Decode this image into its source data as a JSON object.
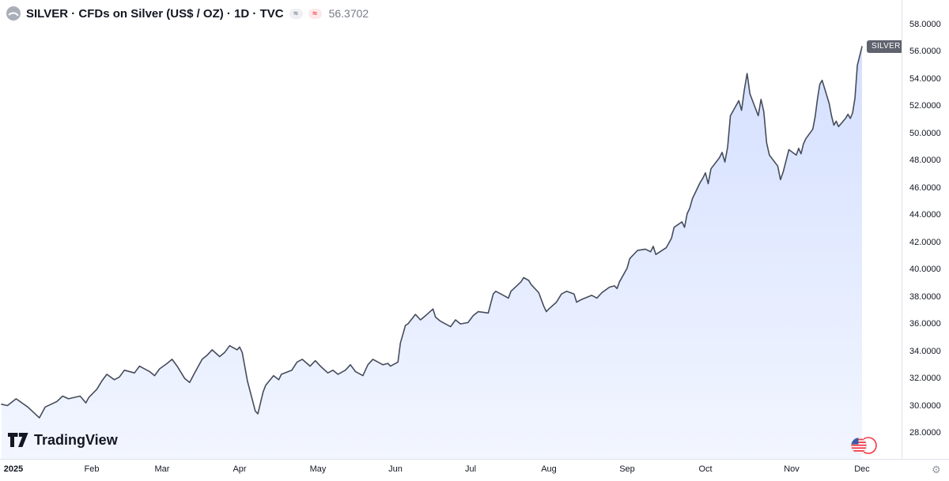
{
  "header": {
    "symbol_title": "SILVER · CFDs on Silver (US$ / OZ) · 1D · TVC",
    "price_value": "56.3702",
    "badges": [
      "≈",
      "≈"
    ]
  },
  "series_label": "SILVER",
  "footer": {
    "logo_text": "TradingView"
  },
  "icons": {
    "settings": "⚙",
    "symbol_logo": "silver-coin",
    "flag": "us-flag-circle"
  },
  "colors": {
    "line": "#454c5b",
    "area_top": "rgba(41,98,255,0.20)",
    "area_bottom": "rgba(41,98,255,0.06)",
    "axis_text": "#131722",
    "muted_text": "#787b86",
    "separator": "#e0e3eb",
    "badge_bg": "#5f636e",
    "alert_red": "#f23645"
  },
  "price_axis": {
    "ticks": [
      "58.0000",
      "56.0000",
      "54.0000",
      "52.0000",
      "50.0000",
      "48.0000",
      "46.0000",
      "44.0000",
      "42.0000",
      "40.0000",
      "38.0000",
      "36.0000",
      "34.0000",
      "32.0000",
      "30.0000",
      "28.0000"
    ]
  },
  "time_axis": {
    "labels": [
      "2025",
      "Feb",
      "Mar",
      "Apr",
      "May",
      "Jun",
      "Jul",
      "Aug",
      "Sep",
      "Oct",
      "Nov",
      "Dec"
    ]
  },
  "chart_data": {
    "type": "area",
    "title": "SILVER · CFDs on Silver (US$ / OZ) · 1D · TVC",
    "symbol": "SILVER",
    "interval": "1D",
    "exchange": "TVC",
    "last_price": 56.3702,
    "xlabel": "",
    "ylabel": "US$ / OZ",
    "ylim": [
      28,
      58
    ],
    "x_range": [
      "2025-01-01",
      "2025-12-01"
    ],
    "grid": false,
    "legend_position": "none",
    "points": [
      [
        "2025-01-01",
        30.1
      ],
      [
        "2025-01-03",
        30.0
      ],
      [
        "2025-01-06",
        30.5
      ],
      [
        "2025-01-08",
        30.2
      ],
      [
        "2025-01-10",
        29.9
      ],
      [
        "2025-01-13",
        29.3
      ],
      [
        "2025-01-14",
        29.1
      ],
      [
        "2025-01-16",
        29.9
      ],
      [
        "2025-01-20",
        30.3
      ],
      [
        "2025-01-22",
        30.7
      ],
      [
        "2025-01-24",
        30.5
      ],
      [
        "2025-01-28",
        30.7
      ],
      [
        "2025-01-30",
        30.2
      ],
      [
        "2025-01-31",
        30.6
      ],
      [
        "2025-02-03",
        31.2
      ],
      [
        "2025-02-05",
        31.8
      ],
      [
        "2025-02-07",
        32.3
      ],
      [
        "2025-02-10",
        31.9
      ],
      [
        "2025-02-12",
        32.1
      ],
      [
        "2025-02-14",
        32.6
      ],
      [
        "2025-02-18",
        32.4
      ],
      [
        "2025-02-20",
        32.9
      ],
      [
        "2025-02-24",
        32.5
      ],
      [
        "2025-02-26",
        32.2
      ],
      [
        "2025-02-28",
        32.7
      ],
      [
        "2025-03-03",
        33.1
      ],
      [
        "2025-03-05",
        33.4
      ],
      [
        "2025-03-07",
        32.9
      ],
      [
        "2025-03-10",
        32.0
      ],
      [
        "2025-03-12",
        31.7
      ],
      [
        "2025-03-14",
        32.4
      ],
      [
        "2025-03-17",
        33.4
      ],
      [
        "2025-03-19",
        33.7
      ],
      [
        "2025-03-21",
        34.1
      ],
      [
        "2025-03-24",
        33.6
      ],
      [
        "2025-03-26",
        33.9
      ],
      [
        "2025-03-28",
        34.4
      ],
      [
        "2025-03-31",
        34.1
      ],
      [
        "2025-04-01",
        34.3
      ],
      [
        "2025-04-02",
        33.9
      ],
      [
        "2025-04-04",
        31.8
      ],
      [
        "2025-04-07",
        29.6
      ],
      [
        "2025-04-08",
        29.4
      ],
      [
        "2025-04-10",
        31.0
      ],
      [
        "2025-04-11",
        31.5
      ],
      [
        "2025-04-14",
        32.2
      ],
      [
        "2025-04-16",
        31.9
      ],
      [
        "2025-04-17",
        32.3
      ],
      [
        "2025-04-21",
        32.6
      ],
      [
        "2025-04-23",
        33.2
      ],
      [
        "2025-04-25",
        33.4
      ],
      [
        "2025-04-28",
        32.9
      ],
      [
        "2025-04-30",
        33.3
      ],
      [
        "2025-05-02",
        32.9
      ],
      [
        "2025-05-05",
        32.4
      ],
      [
        "2025-05-07",
        32.6
      ],
      [
        "2025-05-09",
        32.3
      ],
      [
        "2025-05-12",
        32.6
      ],
      [
        "2025-05-14",
        33.0
      ],
      [
        "2025-05-16",
        32.5
      ],
      [
        "2025-05-19",
        32.2
      ],
      [
        "2025-05-21",
        33.0
      ],
      [
        "2025-05-23",
        33.4
      ],
      [
        "2025-05-27",
        33.0
      ],
      [
        "2025-05-29",
        33.1
      ],
      [
        "2025-05-30",
        32.9
      ],
      [
        "2025-06-02",
        33.2
      ],
      [
        "2025-06-03",
        34.6
      ],
      [
        "2025-06-05",
        35.9
      ],
      [
        "2025-06-06",
        36.0
      ],
      [
        "2025-06-09",
        36.7
      ],
      [
        "2025-06-11",
        36.3
      ],
      [
        "2025-06-13",
        36.6
      ],
      [
        "2025-06-16",
        37.1
      ],
      [
        "2025-06-17",
        36.5
      ],
      [
        "2025-06-19",
        36.2
      ],
      [
        "2025-06-23",
        35.8
      ],
      [
        "2025-06-25",
        36.3
      ],
      [
        "2025-06-27",
        36.0
      ],
      [
        "2025-06-30",
        36.1
      ],
      [
        "2025-07-02",
        36.6
      ],
      [
        "2025-07-04",
        36.9
      ],
      [
        "2025-07-08",
        36.8
      ],
      [
        "2025-07-10",
        38.2
      ],
      [
        "2025-07-11",
        38.4
      ],
      [
        "2025-07-14",
        38.1
      ],
      [
        "2025-07-16",
        37.9
      ],
      [
        "2025-07-17",
        38.4
      ],
      [
        "2025-07-21",
        39.1
      ],
      [
        "2025-07-22",
        39.4
      ],
      [
        "2025-07-24",
        39.2
      ],
      [
        "2025-07-25",
        38.9
      ],
      [
        "2025-07-28",
        38.3
      ],
      [
        "2025-07-30",
        37.3
      ],
      [
        "2025-07-31",
        36.9
      ],
      [
        "2025-08-01",
        37.1
      ],
      [
        "2025-08-04",
        37.6
      ],
      [
        "2025-08-06",
        38.2
      ],
      [
        "2025-08-08",
        38.4
      ],
      [
        "2025-08-11",
        38.2
      ],
      [
        "2025-08-12",
        37.6
      ],
      [
        "2025-08-14",
        37.8
      ],
      [
        "2025-08-18",
        38.1
      ],
      [
        "2025-08-20",
        37.9
      ],
      [
        "2025-08-22",
        38.3
      ],
      [
        "2025-08-25",
        38.7
      ],
      [
        "2025-08-27",
        38.8
      ],
      [
        "2025-08-28",
        38.6
      ],
      [
        "2025-08-29",
        39.1
      ],
      [
        "2025-09-01",
        40.1
      ],
      [
        "2025-09-02",
        40.8
      ],
      [
        "2025-09-04",
        41.2
      ],
      [
        "2025-09-05",
        41.4
      ],
      [
        "2025-09-08",
        41.5
      ],
      [
        "2025-09-10",
        41.3
      ],
      [
        "2025-09-11",
        41.7
      ],
      [
        "2025-09-12",
        41.1
      ],
      [
        "2025-09-16",
        41.6
      ],
      [
        "2025-09-18",
        42.3
      ],
      [
        "2025-09-19",
        43.1
      ],
      [
        "2025-09-22",
        43.5
      ],
      [
        "2025-09-23",
        43.1
      ],
      [
        "2025-09-24",
        44.1
      ],
      [
        "2025-09-25",
        44.5
      ],
      [
        "2025-09-26",
        45.2
      ],
      [
        "2025-09-29",
        46.4
      ],
      [
        "2025-09-30",
        46.7
      ],
      [
        "2025-10-01",
        47.1
      ],
      [
        "2025-10-02",
        46.3
      ],
      [
        "2025-10-03",
        47.4
      ],
      [
        "2025-10-06",
        48.2
      ],
      [
        "2025-10-07",
        48.6
      ],
      [
        "2025-10-08",
        47.9
      ],
      [
        "2025-10-09",
        49.0
      ],
      [
        "2025-10-10",
        51.3
      ],
      [
        "2025-10-13",
        52.4
      ],
      [
        "2025-10-14",
        51.7
      ],
      [
        "2025-10-15",
        53.2
      ],
      [
        "2025-10-16",
        54.4
      ],
      [
        "2025-10-17",
        52.9
      ],
      [
        "2025-10-20",
        51.3
      ],
      [
        "2025-10-21",
        52.5
      ],
      [
        "2025-10-22",
        51.6
      ],
      [
        "2025-10-23",
        49.3
      ],
      [
        "2025-10-24",
        48.4
      ],
      [
        "2025-10-27",
        47.6
      ],
      [
        "2025-10-28",
        46.6
      ],
      [
        "2025-10-29",
        47.2
      ],
      [
        "2025-10-30",
        48.0
      ],
      [
        "2025-10-31",
        48.8
      ],
      [
        "2025-11-03",
        48.4
      ],
      [
        "2025-11-04",
        48.9
      ],
      [
        "2025-11-05",
        48.5
      ],
      [
        "2025-11-06",
        49.2
      ],
      [
        "2025-11-07",
        49.6
      ],
      [
        "2025-11-10",
        50.3
      ],
      [
        "2025-11-11",
        51.2
      ],
      [
        "2025-11-12",
        52.5
      ],
      [
        "2025-11-13",
        53.6
      ],
      [
        "2025-11-14",
        53.9
      ],
      [
        "2025-11-17",
        52.2
      ],
      [
        "2025-11-18",
        51.3
      ],
      [
        "2025-11-19",
        50.6
      ],
      [
        "2025-11-20",
        50.9
      ],
      [
        "2025-11-21",
        50.5
      ],
      [
        "2025-11-24",
        51.1
      ],
      [
        "2025-11-25",
        51.4
      ],
      [
        "2025-11-26",
        51.1
      ],
      [
        "2025-11-27",
        51.5
      ],
      [
        "2025-11-28",
        52.6
      ],
      [
        "2025-11-29",
        55.0
      ],
      [
        "2025-12-01",
        56.3702
      ]
    ]
  }
}
